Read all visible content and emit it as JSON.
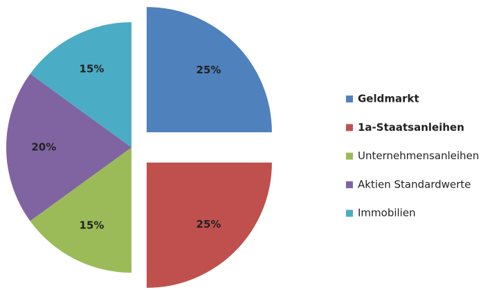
{
  "chart_data": {
    "type": "pie",
    "categories": [
      "Geldmarkt",
      "1a-Staatsanleihen",
      "Unternehmensanleihen",
      "Aktien Standardwerte",
      "Immobilien"
    ],
    "values": [
      25,
      25,
      15,
      20,
      15
    ],
    "value_labels": [
      "25%",
      "25%",
      "15%",
      "20%",
      "15%"
    ],
    "colors": [
      "#4f81bd",
      "#c0504d",
      "#9bbb59",
      "#8064a2",
      "#4bacc6"
    ],
    "explode": [
      true,
      true,
      false,
      false,
      false
    ],
    "legend": "right"
  }
}
